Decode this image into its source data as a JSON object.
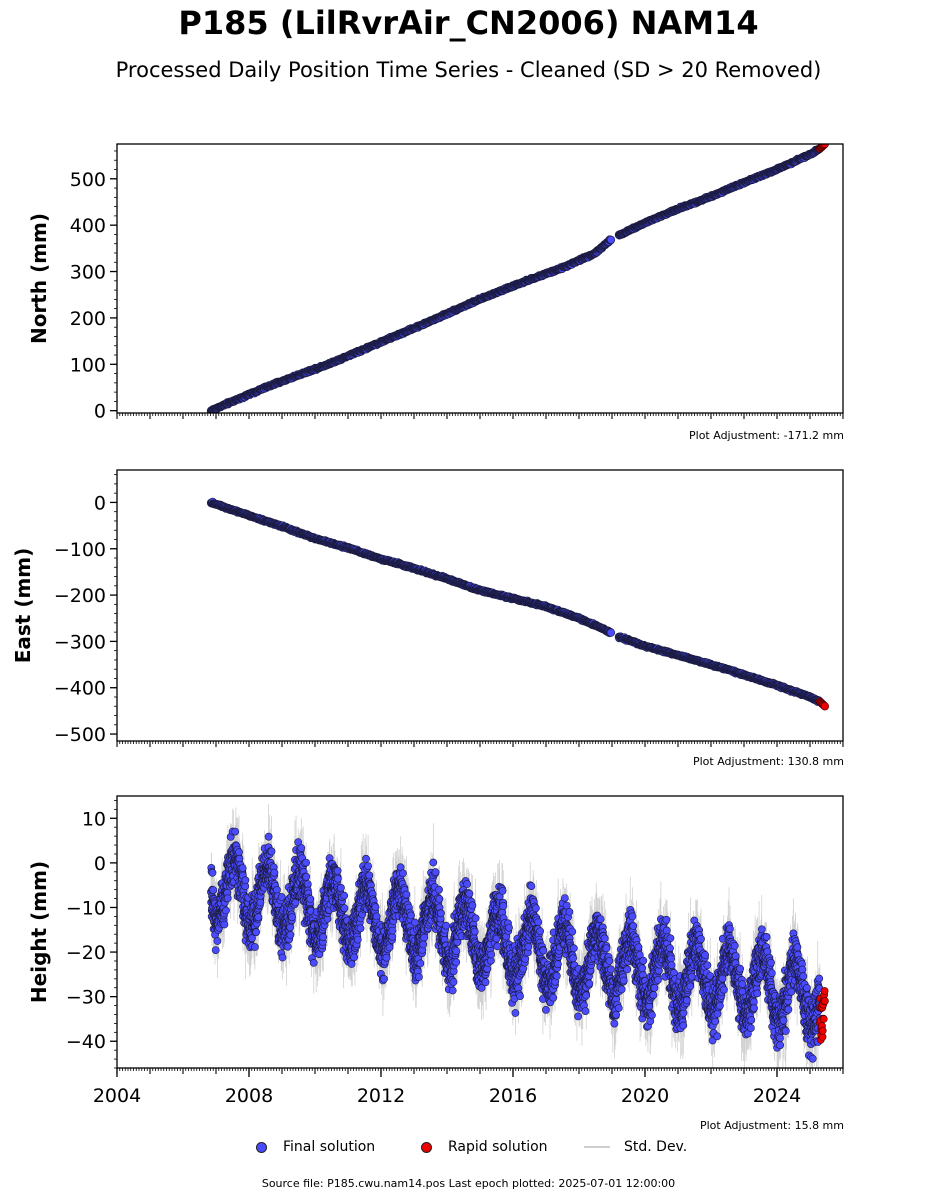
{
  "title": "P185 (LilRvrAir_CN2006) NAM14",
  "subtitle": "Processed Daily Position Time Series - Cleaned (SD > 20 Removed)",
  "legend": {
    "final": "Final solution",
    "rapid": "Rapid solution",
    "std": "Std. Dev."
  },
  "footer": "Source file: P185.cwu.nam14.pos  Last epoch plotted: 2025-07-01 12:00:00",
  "colors": {
    "final": "#4a4aff",
    "rapid": "#ee0000",
    "std": "#9a9a9a",
    "edge": "#1a1a3a"
  },
  "chart_data": [
    {
      "type": "scatter",
      "ylabel": "North (mm)",
      "adjustment": "Plot Adjustment: -171.2 mm",
      "xlim": [
        2004.0,
        2026.0
      ],
      "ylim": [
        -5,
        575
      ],
      "yticks": [
        0,
        100,
        200,
        300,
        400,
        500
      ],
      "xticks": [],
      "series": [
        {
          "x": [
            2006.85,
            2007.5,
            2008.5,
            2009.5,
            2010.5,
            2011.5,
            2012.5,
            2013.5,
            2014.5,
            2015.5,
            2016.5,
            2017.5,
            2018.5,
            2018.95,
            2019.2,
            2020.0,
            2021.0,
            2022.0,
            2023.0,
            2024.0,
            2025.0,
            2025.3
          ],
          "y": [
            0,
            20,
            50,
            77,
            103,
            133,
            163,
            193,
            225,
            255,
            282,
            308,
            340,
            368,
            378,
            405,
            435,
            462,
            492,
            520,
            553,
            565
          ]
        },
        {
          "x": [
            2025.3,
            2025.45
          ],
          "y": [
            565,
            575
          ]
        }
      ],
      "noise": 1.5,
      "std_spread": 1.5
    },
    {
      "type": "scatter",
      "ylabel": "East (mm)",
      "adjustment": "Plot Adjustment: 130.8 mm",
      "xlim": [
        2004.0,
        2026.0
      ],
      "ylim": [
        -515,
        70
      ],
      "yticks": [
        0,
        -100,
        -200,
        -300,
        -400,
        -500
      ],
      "xticks": [],
      "series": [
        {
          "x": [
            2006.85,
            2008.0,
            2009.0,
            2010.0,
            2011.0,
            2012.0,
            2013.0,
            2014.0,
            2015.0,
            2016.0,
            2017.0,
            2018.0,
            2018.95,
            2019.2,
            2020.0,
            2021.0,
            2022.0,
            2023.0,
            2024.0,
            2025.0,
            2025.3
          ],
          "y": [
            0,
            -28,
            -52,
            -78,
            -98,
            -122,
            -142,
            -165,
            -190,
            -207,
            -225,
            -250,
            -280,
            -290,
            -310,
            -330,
            -350,
            -372,
            -395,
            -420,
            -430
          ]
        },
        {
          "x": [
            2025.3,
            2025.45
          ],
          "y": [
            -430,
            -440
          ]
        }
      ],
      "noise": 1.5,
      "std_spread": 1.5
    },
    {
      "type": "scatter",
      "ylabel": "Height (mm)",
      "adjustment": "Plot Adjustment: 15.8 mm",
      "xlim": [
        2004.0,
        2026.0
      ],
      "ylim": [
        -46,
        15
      ],
      "yticks": [
        10,
        0,
        -10,
        -20,
        -30,
        -40
      ],
      "xticks": [
        2004,
        2008,
        2012,
        2016,
        2020,
        2024
      ],
      "series": [
        {
          "x": [
            2006.85,
            2010.0,
            2014.0,
            2018.0,
            2022.0,
            2025.3
          ],
          "y": [
            -5,
            -10,
            -15,
            -22,
            -26,
            -30
          ]
        },
        {
          "x": [
            2025.3,
            2025.45
          ],
          "y": [
            -28,
            -40
          ]
        }
      ],
      "seasonal_amplitude": 7,
      "noise": 4,
      "std_spread": 6
    }
  ]
}
